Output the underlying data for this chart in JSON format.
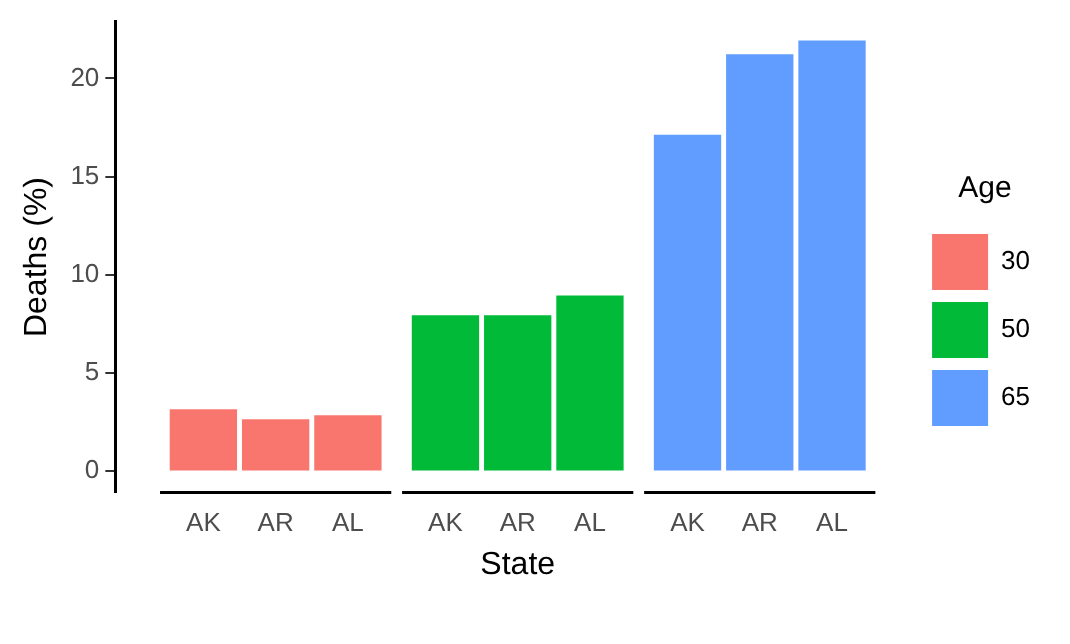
{
  "chart_data": {
    "type": "bar",
    "xlabel": "State",
    "ylabel": "Deaths (%)",
    "legend_title": "Age",
    "categories": [
      "AK",
      "AR",
      "AL",
      "AK",
      "AR",
      "AL",
      "AK",
      "AR",
      "AL"
    ],
    "series": [
      {
        "name": "30",
        "color": "#f8766d",
        "values": [
          3.1,
          2.6,
          2.8,
          null,
          null,
          null,
          null,
          null,
          null
        ]
      },
      {
        "name": "50",
        "color": "#00ba38",
        "values": [
          null,
          null,
          null,
          7.9,
          7.9,
          8.9,
          null,
          null,
          null
        ]
      },
      {
        "name": "65",
        "color": "#619cff",
        "values": [
          null,
          null,
          null,
          null,
          null,
          null,
          17.1,
          21.2,
          21.9
        ]
      }
    ],
    "stacked": true,
    "ylim": [
      -1.1,
      22.9
    ],
    "yticks": [
      0,
      5,
      10,
      15,
      20
    ],
    "grid": false,
    "legend": "right"
  }
}
